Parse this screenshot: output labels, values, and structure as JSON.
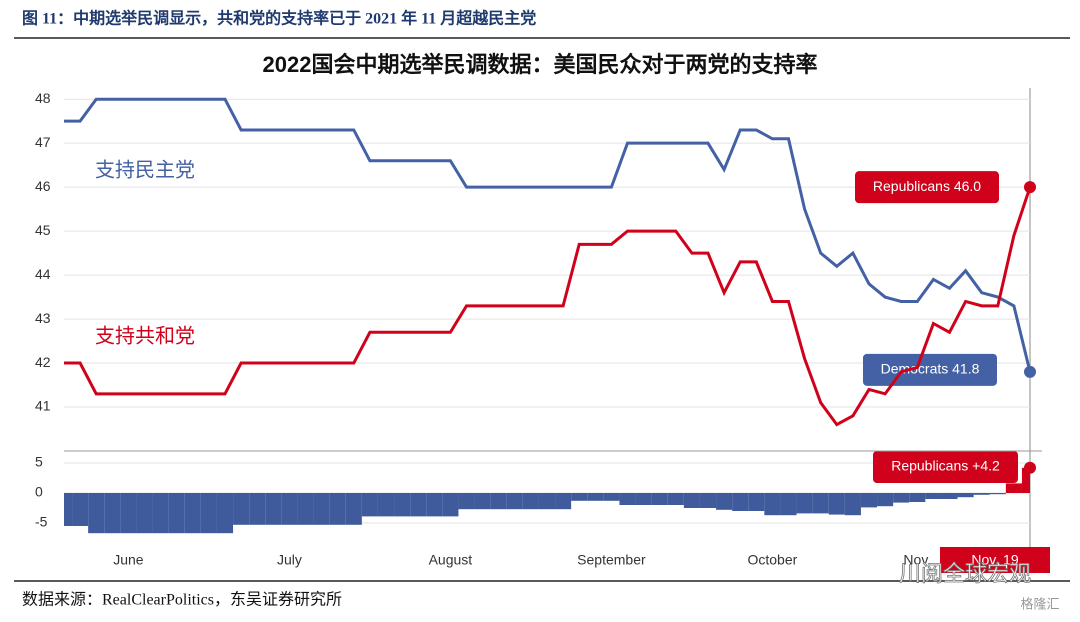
{
  "document": {
    "caption": "图 11：中期选举民调显示，共和党的支持率已于 2021 年 11 月超越民主党",
    "source": "数据来源：RealClearPolitics，东吴证券研究所",
    "watermark": "川阅全球宏观",
    "watermark_brand": "格隆汇"
  },
  "chart_data": [
    {
      "type": "line",
      "title": "2022国会中期选举民调数据：美国民众对于两党的支持率",
      "ylim": [
        40,
        48.3
      ],
      "yticks": [
        41,
        42,
        43,
        44,
        45,
        46,
        47,
        48
      ],
      "grid": true,
      "series": [
        {
          "name": "支持民主党",
          "color": "#4361a4",
          "end_label": "Democrats 41.8",
          "values": [
            47.5,
            47.5,
            48,
            48,
            48,
            48,
            48,
            48,
            48,
            48,
            48,
            47.3,
            47.3,
            47.3,
            47.3,
            47.3,
            47.3,
            47.3,
            47.3,
            46.6,
            46.6,
            46.6,
            46.6,
            46.6,
            46.6,
            46,
            46,
            46,
            46,
            46,
            46,
            46,
            46,
            46,
            46,
            47,
            47,
            47,
            47,
            47,
            47,
            46.4,
            47.3,
            47.3,
            47.1,
            47.1,
            45.5,
            44.5,
            44.2,
            44.5,
            43.8,
            43.5,
            43.4,
            43.4,
            43.9,
            43.7,
            44.1,
            43.6,
            43.5,
            43.3,
            41.8
          ]
        },
        {
          "name": "支持共和党",
          "color": "#d0021b",
          "end_label": "Republicans 46.0",
          "values": [
            42,
            42,
            41.3,
            41.3,
            41.3,
            41.3,
            41.3,
            41.3,
            41.3,
            41.3,
            41.3,
            42,
            42,
            42,
            42,
            42,
            42,
            42,
            42,
            42.7,
            42.7,
            42.7,
            42.7,
            42.7,
            42.7,
            43.3,
            43.3,
            43.3,
            43.3,
            43.3,
            43.3,
            43.3,
            44.7,
            44.7,
            44.7,
            45,
            45,
            45,
            45,
            44.5,
            44.5,
            43.6,
            44.3,
            44.3,
            43.4,
            43.4,
            42.1,
            41.1,
            40.6,
            40.8,
            41.4,
            41.3,
            41.8,
            41.9,
            42.9,
            42.7,
            43.4,
            43.3,
            43.3,
            44.9,
            46
          ]
        }
      ]
    },
    {
      "type": "area",
      "ylim": [
        -9,
        7
      ],
      "yticks": [
        -5,
        0,
        5
      ],
      "colors": {
        "negative": "#3f5b9b",
        "positive": "#d0021b"
      },
      "end_label": "Republicans +4.2",
      "categories": [
        null,
        null,
        null,
        null,
        "June",
        null,
        null,
        null,
        null,
        null,
        null,
        null,
        null,
        null,
        "July",
        null,
        null,
        null,
        null,
        null,
        null,
        null,
        null,
        null,
        "August",
        null,
        null,
        null,
        null,
        null,
        null,
        null,
        null,
        null,
        "September",
        null,
        null,
        null,
        null,
        null,
        null,
        null,
        null,
        null,
        "October",
        null,
        null,
        null,
        null,
        null,
        null,
        null,
        null,
        "Nov.",
        null,
        null,
        null,
        null,
        null,
        null,
        "Nov. 19"
      ],
      "values": [
        -5.5,
        -5.5,
        -6.7,
        -6.7,
        -6.7,
        -6.7,
        -6.7,
        -6.7,
        -6.7,
        -6.7,
        -6.7,
        -5.3,
        -5.3,
        -5.3,
        -5.3,
        -5.3,
        -5.3,
        -5.3,
        -5.3,
        -3.9,
        -3.9,
        -3.9,
        -3.9,
        -3.9,
        -3.9,
        -2.7,
        -2.7,
        -2.7,
        -2.7,
        -2.7,
        -2.7,
        -2.7,
        -1.3,
        -1.3,
        -1.3,
        -2,
        -2,
        -2,
        -2,
        -2.5,
        -2.5,
        -2.8,
        -3,
        -3,
        -3.7,
        -3.7,
        -3.4,
        -3.4,
        -3.6,
        -3.7,
        -2.4,
        -2.2,
        -1.6,
        -1.5,
        -1,
        -1,
        -0.7,
        -0.3,
        -0.2,
        1.6,
        4.2
      ]
    }
  ]
}
